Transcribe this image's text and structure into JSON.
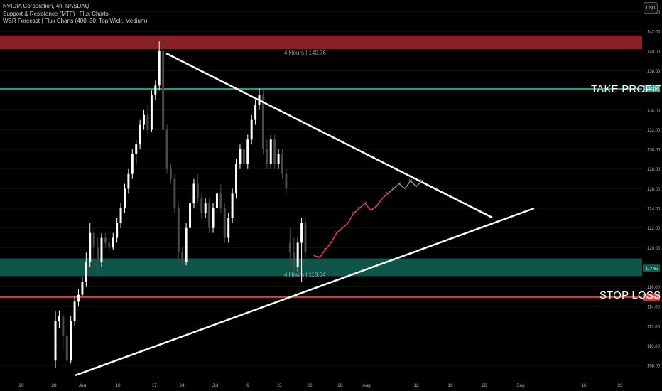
{
  "legend": {
    "symbol_line": "NVIDIA Corporation, 4h, NASDAQ",
    "indicator_1": "Support & Resistance (MTF) | Flux Charts",
    "indicator_2": "WBR Forecast | Flux Charts (400, 30, Top Wick, Medium)"
  },
  "currency_button": "USD",
  "annotations": {
    "take_profit": "TAKE PROFIT",
    "stop_loss": "STOP LOSS"
  },
  "zones": {
    "resistance": {
      "label": "4 Hours | 140.76",
      "color": "#a1242e"
    },
    "support": {
      "label": "4 Hours | 118.04",
      "color": "#0e5e4e"
    }
  },
  "colors": {
    "up_candle": "#ffffff",
    "down_candle": "#4a4a4a",
    "take_profit_line": "#16a085",
    "stop_loss_line": "#e53935",
    "forecast_red": "#e0405a",
    "forecast_gray": "#8a8a99",
    "trendline": "#ffffff"
  },
  "chart_data": {
    "type": "candlestick",
    "y_axis": {
      "ticks": [
        108.0,
        110.0,
        112.0,
        114.0,
        116.0,
        118.0,
        120.0,
        122.0,
        124.0,
        126.0,
        128.0,
        130.0,
        132.0,
        134.0,
        136.0,
        138.0,
        140.0,
        142.0,
        144.0
      ],
      "range": [
        107.0,
        145.2
      ]
    },
    "x_axis": {
      "ticks": [
        "20",
        "28",
        "Jun",
        "10",
        "17",
        "24",
        "Jul",
        "9",
        "15",
        "22",
        "26",
        "Aug",
        "12",
        "19",
        "26",
        "Sep",
        "16",
        "23"
      ]
    },
    "price_badges": [
      {
        "value": "136.16",
        "color": "#16a085"
      },
      {
        "value": "117.92",
        "color": "#0e5e4e"
      },
      {
        "value": "114.97",
        "color": "#e53935"
      }
    ],
    "levels": {
      "take_profit": 136.16,
      "stop_loss": 114.97,
      "resistance_zone": [
        140.2,
        141.6
      ],
      "support_zone": [
        117.1,
        118.9
      ]
    },
    "candles": [
      [
        108.5,
        112.5,
        107.8,
        113.5
      ],
      [
        112.5,
        113.0,
        111.8,
        113.6
      ],
      [
        113.0,
        111.0,
        109.5,
        113.3
      ],
      [
        111.0,
        108.5,
        108.0,
        111.5
      ],
      [
        108.5,
        112.5,
        108.2,
        113.0
      ],
      [
        112.5,
        114.5,
        112.0,
        115.0
      ],
      [
        114.5,
        115.2,
        114.0,
        115.8
      ],
      [
        115.2,
        116.5,
        115.0,
        117.0
      ],
      [
        116.5,
        118.5,
        116.0,
        119.5
      ],
      [
        118.5,
        121.5,
        118.0,
        122.5
      ],
      [
        121.5,
        120.0,
        118.5,
        122.0
      ],
      [
        120.0,
        118.5,
        117.2,
        121.0
      ],
      [
        118.5,
        121.0,
        118.0,
        121.5
      ],
      [
        121.0,
        120.5,
        120.0,
        121.5
      ],
      [
        120.5,
        120.0,
        119.5,
        121.0
      ],
      [
        120.0,
        121.0,
        119.8,
        121.5
      ],
      [
        121.0,
        122.5,
        120.5,
        123.0
      ],
      [
        122.5,
        124.0,
        122.0,
        124.5
      ],
      [
        124.0,
        126.0,
        123.5,
        126.5
      ],
      [
        126.0,
        127.5,
        125.5,
        128.0
      ],
      [
        127.5,
        129.5,
        127.0,
        130.0
      ],
      [
        129.5,
        130.5,
        128.5,
        131.0
      ],
      [
        130.5,
        132.5,
        130.0,
        133.0
      ],
      [
        132.5,
        133.5,
        132.0,
        134.0
      ],
      [
        133.5,
        132.0,
        131.5,
        134.5
      ],
      [
        132.0,
        135.5,
        131.8,
        136.0
      ],
      [
        135.5,
        136.5,
        135.0,
        137.0
      ],
      [
        136.5,
        140.0,
        136.0,
        141.0
      ],
      [
        140.0,
        132.0,
        131.5,
        140.5
      ],
      [
        132.0,
        128.0,
        127.5,
        132.5
      ],
      [
        128.0,
        127.0,
        126.5,
        128.5
      ],
      [
        127.0,
        124.0,
        123.5,
        127.5
      ],
      [
        124.0,
        119.5,
        118.5,
        124.5
      ],
      [
        119.5,
        118.5,
        117.8,
        120.0
      ],
      [
        118.5,
        122.0,
        118.2,
        122.5
      ],
      [
        122.0,
        124.5,
        121.5,
        125.0
      ],
      [
        124.5,
        126.5,
        124.0,
        127.0
      ],
      [
        126.5,
        125.0,
        124.5,
        127.5
      ],
      [
        125.0,
        123.5,
        123.0,
        125.5
      ],
      [
        123.5,
        124.5,
        123.0,
        125.0
      ],
      [
        124.5,
        122.0,
        121.5,
        125.0
      ],
      [
        122.0,
        124.0,
        121.5,
        124.5
      ],
      [
        124.0,
        125.5,
        123.5,
        126.0
      ],
      [
        125.5,
        124.0,
        123.5,
        126.5
      ],
      [
        124.0,
        121.0,
        120.5,
        124.5
      ],
      [
        121.0,
        123.0,
        120.5,
        123.5
      ],
      [
        123.0,
        125.5,
        122.5,
        126.0
      ],
      [
        125.5,
        128.5,
        125.0,
        129.0
      ],
      [
        128.5,
        130.0,
        128.0,
        130.5
      ],
      [
        130.0,
        128.5,
        127.5,
        130.5
      ],
      [
        128.5,
        131.0,
        128.0,
        131.5
      ],
      [
        131.0,
        133.0,
        130.5,
        133.5
      ],
      [
        133.0,
        134.5,
        132.5,
        135.0
      ],
      [
        134.5,
        135.5,
        134.0,
        136.2
      ],
      [
        135.5,
        130.0,
        129.5,
        136.0
      ],
      [
        130.0,
        128.5,
        128.0,
        131.0
      ],
      [
        128.5,
        131.0,
        128.0,
        131.5
      ],
      [
        131.0,
        128.5,
        128.0,
        131.5
      ],
      [
        128.5,
        129.5,
        128.0,
        130.0
      ],
      [
        129.5,
        127.5,
        127.0,
        130.0
      ],
      [
        127.5,
        126.0,
        125.5,
        128.0
      ],
      [
        120.5,
        119.5,
        118.0,
        122.0
      ],
      [
        119.5,
        118.0,
        117.2,
        121.0
      ],
      [
        118.0,
        120.5,
        117.5,
        121.0
      ],
      [
        120.5,
        122.5,
        116.5,
        123.0
      ],
      [
        122.5,
        119.5,
        119.0,
        123.0
      ]
    ],
    "forecast": {
      "points_red": [
        [
          119.2,
          0
        ],
        [
          119.0,
          1
        ],
        [
          119.8,
          2
        ],
        [
          120.5,
          3
        ],
        [
          121.5,
          4
        ],
        [
          122.0,
          5
        ],
        [
          122.5,
          6
        ],
        [
          123.5,
          7
        ],
        [
          124.0,
          8
        ],
        [
          124.5,
          9
        ],
        [
          123.8,
          10
        ],
        [
          124.2,
          11
        ],
        [
          125.0,
          12
        ],
        [
          125.5,
          13
        ]
      ],
      "points_gray": [
        [
          125.5,
          13
        ],
        [
          126.0,
          14
        ],
        [
          126.5,
          15
        ],
        [
          126.0,
          16
        ],
        [
          126.8,
          17
        ],
        [
          126.2,
          18
        ],
        [
          126.8,
          19
        ]
      ]
    }
  }
}
